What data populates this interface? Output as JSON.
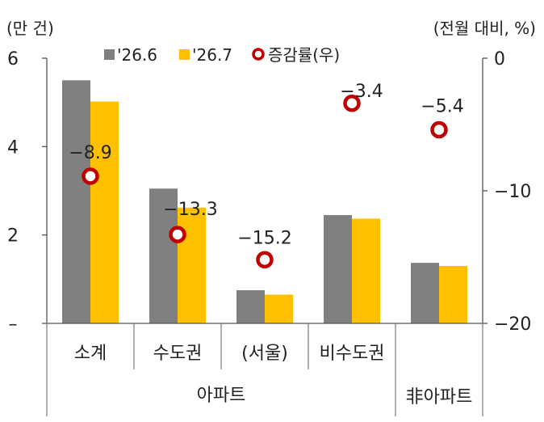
{
  "chart_data": {
    "type": "bar",
    "y_left_unit": "(만 건)",
    "y_right_unit": "(전월 대비, %)",
    "y_left_ticks": [
      {
        "value": 6,
        "label": "6"
      },
      {
        "value": 4,
        "label": "4"
      },
      {
        "value": 2,
        "label": "2"
      },
      {
        "value": 0,
        "label": "–"
      }
    ],
    "y_right_ticks": [
      {
        "value": 0,
        "label": "0"
      },
      {
        "value": -10,
        "label": "−10"
      },
      {
        "value": -20,
        "label": "−20"
      }
    ],
    "ylim_left": [
      0,
      6
    ],
    "ylim_right": [
      -20,
      0
    ],
    "categories": [
      "소계",
      "수도권",
      "(서울)",
      "비수도권",
      ""
    ],
    "groups": [
      {
        "label": "아파트",
        "span": [
          0,
          3
        ]
      },
      {
        "label": "非아파트",
        "span": [
          4,
          4
        ]
      }
    ],
    "series": [
      {
        "name": "'26.6",
        "type": "bar",
        "axis": "left",
        "color": "#808080",
        "values": [
          5.5,
          3.05,
          0.75,
          2.45,
          1.37
        ]
      },
      {
        "name": "'26.7",
        "type": "bar",
        "axis": "left",
        "color": "#FFC000",
        "values": [
          5.02,
          2.62,
          0.65,
          2.37,
          1.3
        ]
      },
      {
        "name": "증감률(우)",
        "type": "scatter",
        "axis": "right",
        "color": "#C00000",
        "values": [
          -8.9,
          -13.3,
          -15.2,
          -3.4,
          -5.4
        ],
        "labels": [
          "−8.9",
          "−13.3",
          "−15.2",
          "−3.4",
          "−5.4"
        ]
      }
    ],
    "grid": false,
    "legend_position": "top"
  }
}
